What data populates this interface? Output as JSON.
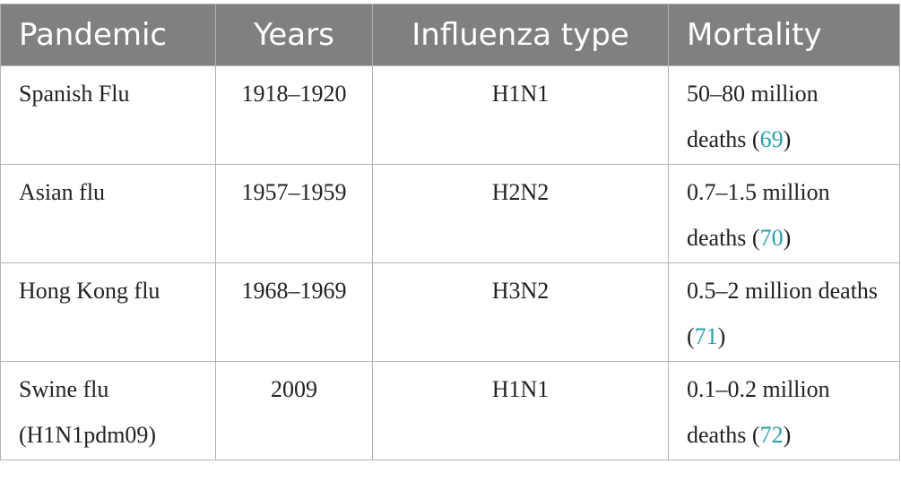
{
  "table": {
    "headers": [
      "Pandemic",
      "Years",
      "Influenza type",
      "Mortality"
    ],
    "rows": [
      {
        "pandemic": "Spanish Flu",
        "years": "1918–1920",
        "type": "H1N1",
        "mortality": "50–80 million deaths (",
        "ref": "69",
        "close": ")"
      },
      {
        "pandemic": "Asian flu",
        "years": "1957–1959",
        "type": "H2N2",
        "mortality": "0.7–1.5 million deaths (",
        "ref": "70",
        "close": ")"
      },
      {
        "pandemic": "Hong Kong flu",
        "years": "1968–1969",
        "type": "H3N2",
        "mortality": "0.5–2 million deaths (",
        "ref": "71",
        "close": ")"
      },
      {
        "pandemic": "Swine flu (H1N1pdm09)",
        "years": "2009",
        "type": "H1N1",
        "mortality": "0.1–0.2 million deaths (",
        "ref": "72",
        "close": ")"
      }
    ]
  },
  "colors": {
    "header_bg": "#808080",
    "header_text": "#ffffff",
    "border": "#b3b3b3",
    "reference_link": "#2a9fa8"
  }
}
